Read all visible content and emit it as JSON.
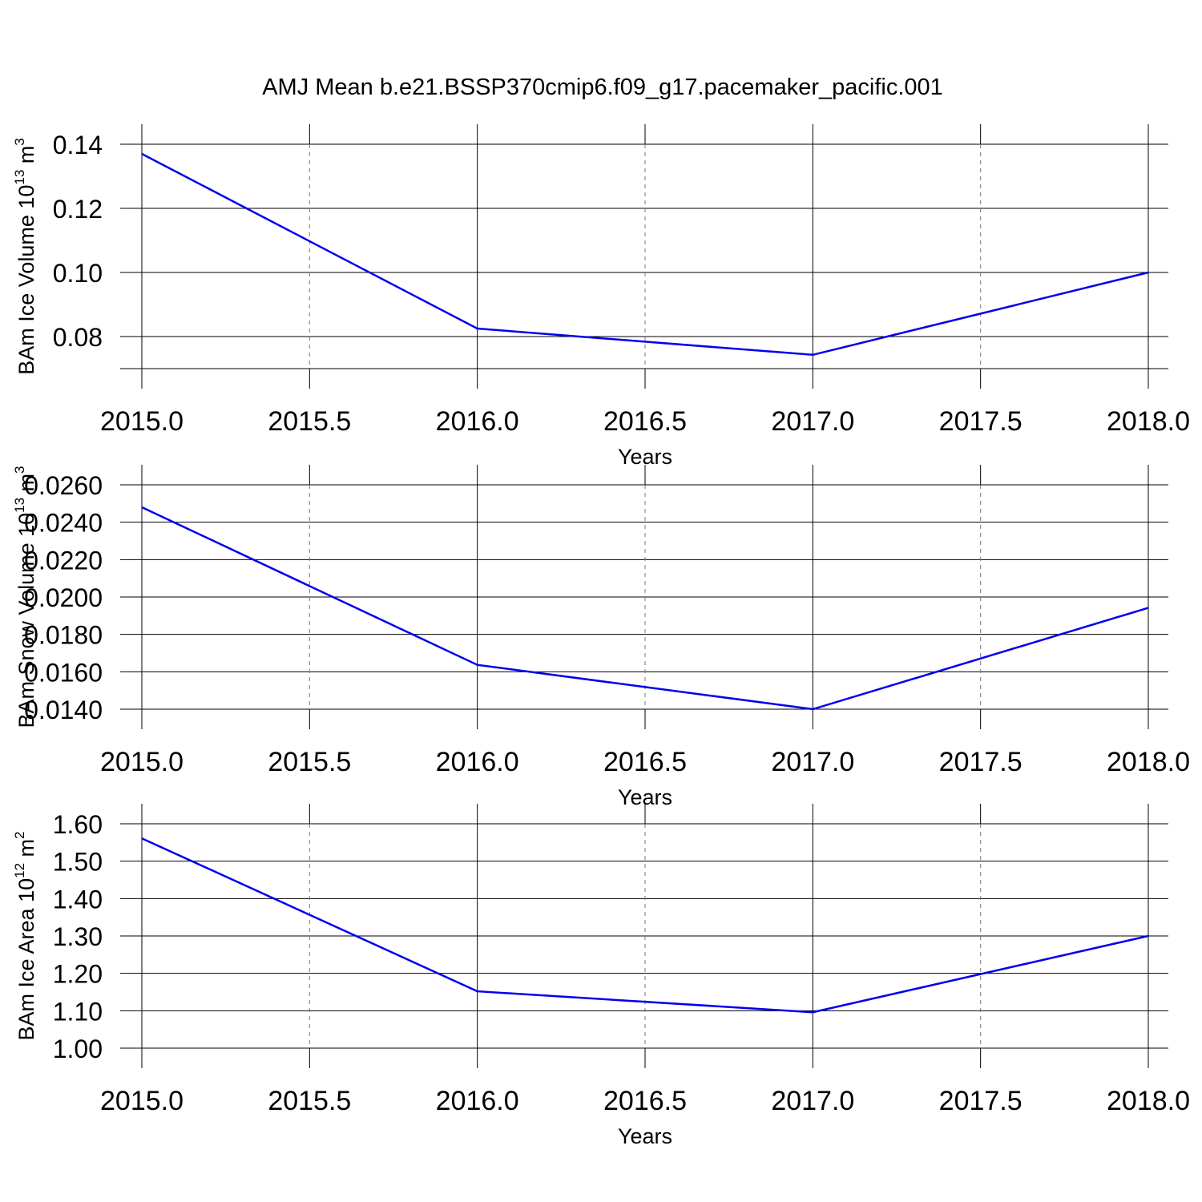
{
  "chart_data": [
    {
      "type": "line",
      "title": "AMJ Mean b.e21.BSSP370cmip6.f09_g17.pacemaker_pacific.001",
      "xlabel": "Years",
      "ylabel_parts": [
        "BAm Ice Volume 10",
        "13",
        " m",
        "3"
      ],
      "x": [
        2015,
        2016,
        2017,
        2018
      ],
      "series": [
        {
          "color": "#0000ee",
          "values": [
            0.137,
            0.0825,
            0.0743,
            0.1
          ]
        }
      ],
      "xlim": [
        2015,
        2018
      ],
      "xticks": [
        {
          "value": 2015,
          "label": "2015.0"
        },
        2015.5,
        {
          "value": 2016,
          "label": "2016.0"
        },
        2016.5,
        {
          "value": 2017,
          "label": "2017.0"
        },
        2017.5,
        {
          "value": 2018,
          "label": "2018.0"
        }
      ],
      "ylim": [
        0.07,
        0.14
      ],
      "yticks": [
        0.08,
        {
          "value": 0.1,
          "label": "0.10"
        },
        0.12,
        0.14
      ],
      "grid": true
    },
    {
      "type": "line",
      "xlabel": "Years",
      "ylabel_parts": [
        "BAm Snow Volume 10",
        "13",
        " m",
        "3"
      ],
      "x": [
        2015,
        2016,
        2017,
        2018
      ],
      "series": [
        {
          "color": "#0000ee",
          "values": [
            0.0248,
            0.01637,
            0.014,
            0.01942
          ]
        }
      ],
      "xlim": [
        2015,
        2018
      ],
      "xticks": [
        {
          "value": 2015,
          "label": "2015.0"
        },
        2015.5,
        {
          "value": 2016,
          "label": "2016.0"
        },
        2016.5,
        {
          "value": 2017,
          "label": "2017.0"
        },
        2017.5,
        {
          "value": 2018,
          "label": "2018.0"
        }
      ],
      "ylim": [
        0.014,
        0.026
      ],
      "yticks": [
        {
          "value": 0.014,
          "label": "0.0140"
        },
        {
          "value": 0.016,
          "label": "0.0160"
        },
        {
          "value": 0.018,
          "label": "0.0180"
        },
        {
          "value": 0.02,
          "label": "0.0200"
        },
        {
          "value": 0.022,
          "label": "0.0220"
        },
        {
          "value": 0.024,
          "label": "0.0240"
        },
        {
          "value": 0.026,
          "label": "0.0260"
        }
      ],
      "grid": true
    },
    {
      "type": "line",
      "xlabel": "Years",
      "ylabel_parts": [
        "BAm Ice Area 10",
        "12",
        " m",
        "2"
      ],
      "x": [
        2015,
        2016,
        2017,
        2018
      ],
      "series": [
        {
          "color": "#0000ee",
          "values": [
            1.561,
            1.152,
            1.096,
            1.3
          ]
        }
      ],
      "xlim": [
        2015,
        2018
      ],
      "xticks": [
        {
          "value": 2015,
          "label": "2015.0"
        },
        2015.5,
        {
          "value": 2016,
          "label": "2016.0"
        },
        2016.5,
        {
          "value": 2017,
          "label": "2017.0"
        },
        2017.5,
        {
          "value": 2018,
          "label": "2018.0"
        }
      ],
      "ylim": [
        1.0,
        1.6
      ],
      "yticks": [
        {
          "value": 1.0,
          "label": "1.00"
        },
        {
          "value": 1.1,
          "label": "1.10"
        },
        {
          "value": 1.2,
          "label": "1.20"
        },
        {
          "value": 1.3,
          "label": "1.30"
        },
        {
          "value": 1.4,
          "label": "1.40"
        },
        {
          "value": 1.5,
          "label": "1.50"
        },
        {
          "value": 1.6,
          "label": "1.60"
        }
      ],
      "grid": true
    }
  ]
}
